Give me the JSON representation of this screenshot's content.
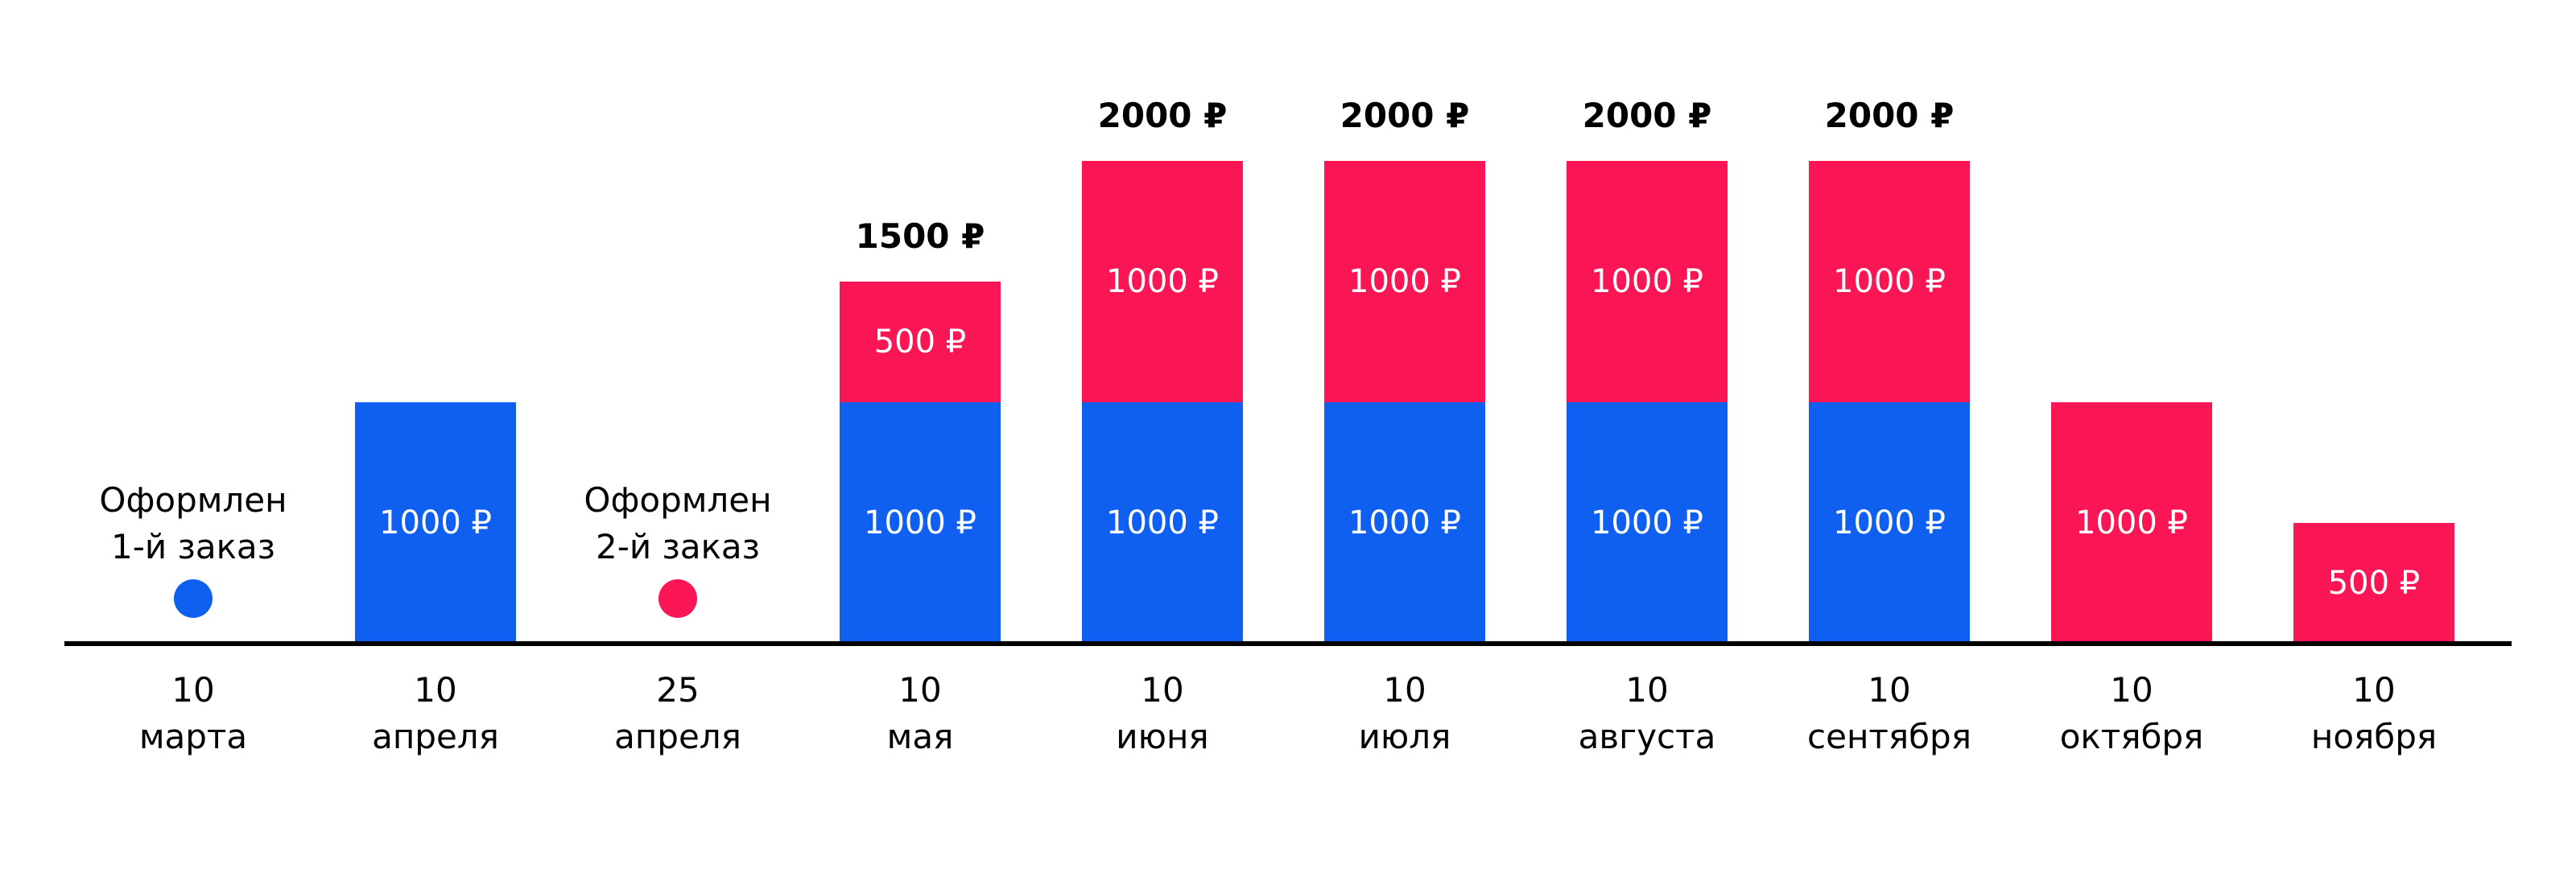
{
  "chart_data": {
    "type": "bar",
    "stacked": true,
    "title": "",
    "xlabel": "",
    "ylabel": "",
    "ylim": [
      0,
      2000
    ],
    "grid": false,
    "legend": "none",
    "categories": [
      [
        "10",
        "марта"
      ],
      [
        "10",
        "апреля"
      ],
      [
        "25",
        "апреля"
      ],
      [
        "10",
        "мая"
      ],
      [
        "10",
        "июня"
      ],
      [
        "10",
        "июля"
      ],
      [
        "10",
        "августа"
      ],
      [
        "10",
        "сентября"
      ],
      [
        "10",
        "октября"
      ],
      [
        "10",
        "ноября"
      ]
    ],
    "series": [
      {
        "color": "#0f5ff0",
        "values": [
          0,
          1000,
          0,
          1000,
          1000,
          1000,
          1000,
          1000,
          0,
          0
        ],
        "labels": [
          "",
          "1000 ₽",
          "",
          "1000 ₽",
          "1000 ₽",
          "1000 ₽",
          "1000 ₽",
          "1000 ₽",
          "",
          ""
        ]
      },
      {
        "color": "#fa1655",
        "values": [
          0,
          0,
          0,
          500,
          1000,
          1000,
          1000,
          1000,
          1000,
          500
        ],
        "labels": [
          "",
          "",
          "",
          "500 ₽",
          "1000 ₽",
          "1000 ₽",
          "1000 ₽",
          "1000 ₽",
          "1000 ₽",
          "500 ₽"
        ]
      }
    ],
    "totals": [
      "",
      "",
      "",
      "1500 ₽",
      "2000 ₽",
      "2000 ₽",
      "2000 ₽",
      "2000 ₽",
      "",
      ""
    ],
    "events": [
      {
        "category_index": 0,
        "lines": [
          "Оформлен",
          "1-й заказ"
        ],
        "color": "#0f5ff0"
      },
      {
        "category_index": 2,
        "lines": [
          "Оформлен",
          "2-й заказ"
        ],
        "color": "#fa1655"
      }
    ],
    "axis_color": "#000000"
  }
}
